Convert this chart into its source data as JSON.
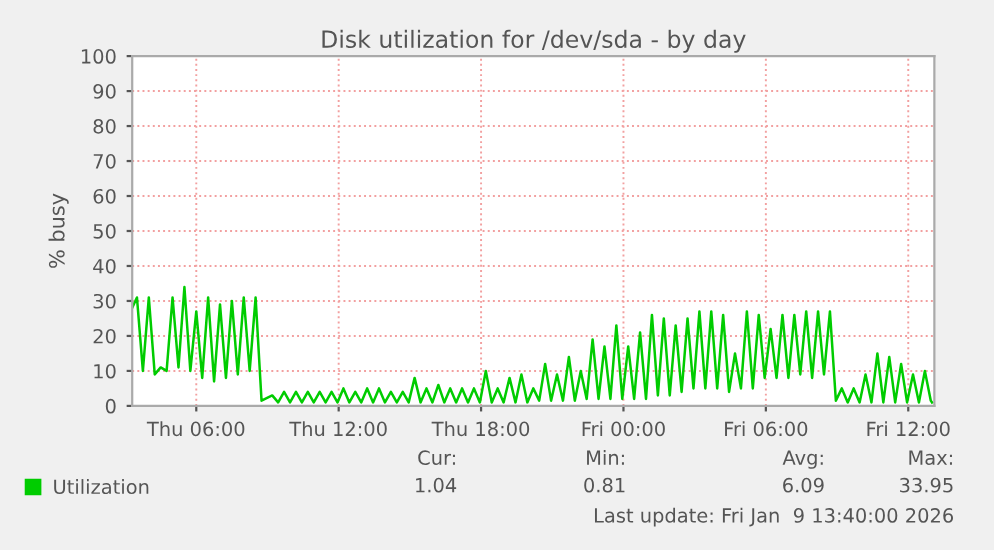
{
  "chart_data": {
    "type": "line",
    "title": "Disk utilization for /dev/sda - by day",
    "ylabel": "% busy",
    "xlim": [
      "2026-01-08T03:18",
      "2026-01-09T13:06"
    ],
    "ylim": [
      0,
      100
    ],
    "xticks": [
      {
        "value": "2026-01-08T06:00",
        "label": "Thu 06:00"
      },
      {
        "value": "2026-01-08T12:00",
        "label": "Thu 12:00"
      },
      {
        "value": "2026-01-08T18:00",
        "label": "Thu 18:00"
      },
      {
        "value": "2026-01-09T00:00",
        "label": "Fri 00:00"
      },
      {
        "value": "2026-01-09T06:00",
        "label": "Fri 06:00"
      },
      {
        "value": "2026-01-09T12:00",
        "label": "Fri 12:00"
      }
    ],
    "yticks": [
      0,
      10,
      20,
      30,
      40,
      50,
      60,
      70,
      80,
      90,
      100
    ],
    "grid": true,
    "legend": "bottom left",
    "marker": "none",
    "line_style": "solid",
    "annotations": [
      "Cur:",
      "Min:",
      "Avg:",
      "Max:",
      "1.04",
      "0.81",
      "6.09",
      "33.95",
      "Last update: Fri Jan  9 13:40:00 2026"
    ],
    "series": [
      {
        "name": "Utilization",
        "color": "#00cc00",
        "x": [
          "2026-01-08T03:18",
          "2026-01-08T03:30",
          "2026-01-08T03:45",
          "2026-01-08T04:00",
          "2026-01-08T04:15",
          "2026-01-08T04:30",
          "2026-01-08T04:45",
          "2026-01-08T05:00",
          "2026-01-08T05:15",
          "2026-01-08T05:30",
          "2026-01-08T05:45",
          "2026-01-08T06:00",
          "2026-01-08T06:15",
          "2026-01-08T06:30",
          "2026-01-08T06:45",
          "2026-01-08T07:00",
          "2026-01-08T07:15",
          "2026-01-08T07:30",
          "2026-01-08T07:45",
          "2026-01-08T08:00",
          "2026-01-08T08:15",
          "2026-01-08T08:30",
          "2026-01-08T08:45",
          "2026-01-08T09:12",
          "2026-01-08T09:27",
          "2026-01-08T09:42",
          "2026-01-08T09:57",
          "2026-01-08T10:12",
          "2026-01-08T10:27",
          "2026-01-08T10:42",
          "2026-01-08T10:57",
          "2026-01-08T11:12",
          "2026-01-08T11:27",
          "2026-01-08T11:42",
          "2026-01-08T11:57",
          "2026-01-08T12:12",
          "2026-01-08T12:27",
          "2026-01-08T12:42",
          "2026-01-08T12:57",
          "2026-01-08T13:12",
          "2026-01-08T13:27",
          "2026-01-08T13:42",
          "2026-01-08T13:57",
          "2026-01-08T14:12",
          "2026-01-08T14:27",
          "2026-01-08T14:42",
          "2026-01-08T14:57",
          "2026-01-08T15:12",
          "2026-01-08T15:27",
          "2026-01-08T15:42",
          "2026-01-08T15:57",
          "2026-01-08T16:12",
          "2026-01-08T16:27",
          "2026-01-08T16:42",
          "2026-01-08T16:57",
          "2026-01-08T17:12",
          "2026-01-08T17:27",
          "2026-01-08T17:42",
          "2026-01-08T17:57",
          "2026-01-08T18:12",
          "2026-01-08T18:27",
          "2026-01-08T18:42",
          "2026-01-08T18:57",
          "2026-01-08T19:12",
          "2026-01-08T19:27",
          "2026-01-08T19:42",
          "2026-01-08T19:57",
          "2026-01-08T20:12",
          "2026-01-08T20:27",
          "2026-01-08T20:42",
          "2026-01-08T20:57",
          "2026-01-08T21:12",
          "2026-01-08T21:27",
          "2026-01-08T21:42",
          "2026-01-08T21:57",
          "2026-01-08T22:12",
          "2026-01-08T22:27",
          "2026-01-08T22:42",
          "2026-01-08T22:57",
          "2026-01-08T23:12",
          "2026-01-08T23:27",
          "2026-01-08T23:42",
          "2026-01-08T23:57",
          "2026-01-09T00:12",
          "2026-01-09T00:27",
          "2026-01-09T00:42",
          "2026-01-09T00:57",
          "2026-01-09T01:12",
          "2026-01-09T01:27",
          "2026-01-09T01:42",
          "2026-01-09T01:57",
          "2026-01-09T02:12",
          "2026-01-09T02:27",
          "2026-01-09T02:42",
          "2026-01-09T02:57",
          "2026-01-09T03:12",
          "2026-01-09T03:27",
          "2026-01-09T03:42",
          "2026-01-09T03:57",
          "2026-01-09T04:12",
          "2026-01-09T04:27",
          "2026-01-09T04:42",
          "2026-01-09T04:57",
          "2026-01-09T05:12",
          "2026-01-09T05:27",
          "2026-01-09T05:42",
          "2026-01-09T05:57",
          "2026-01-09T06:12",
          "2026-01-09T06:27",
          "2026-01-09T06:42",
          "2026-01-09T06:57",
          "2026-01-09T07:12",
          "2026-01-09T07:27",
          "2026-01-09T07:42",
          "2026-01-09T07:57",
          "2026-01-09T08:12",
          "2026-01-09T08:27",
          "2026-01-09T08:42",
          "2026-01-09T08:57",
          "2026-01-09T09:12",
          "2026-01-09T09:27",
          "2026-01-09T09:42",
          "2026-01-09T09:57",
          "2026-01-09T10:12",
          "2026-01-09T10:27",
          "2026-01-09T10:42",
          "2026-01-09T10:57",
          "2026-01-09T11:12",
          "2026-01-09T11:27",
          "2026-01-09T11:42",
          "2026-01-09T11:57",
          "2026-01-09T12:12",
          "2026-01-09T12:27",
          "2026-01-09T12:42",
          "2026-01-09T12:57",
          "2026-01-09T13:00"
        ],
        "values": [
          28,
          31,
          10,
          31,
          9,
          11,
          10,
          31,
          11,
          34,
          10,
          27,
          8,
          31,
          7,
          29,
          8,
          30,
          9,
          31,
          10,
          31,
          1.5,
          3,
          1,
          4,
          1,
          4,
          1,
          4,
          1,
          4,
          1,
          4,
          1,
          5,
          1,
          4,
          1,
          5,
          1,
          5,
          1,
          4,
          1,
          4,
          1,
          8,
          1,
          5,
          1,
          6,
          1,
          5,
          1,
          5,
          1,
          5,
          1,
          10,
          1,
          5,
          1,
          8,
          1,
          9,
          1,
          5,
          1.5,
          12,
          1.5,
          9,
          1.5,
          14,
          1.5,
          10,
          2,
          19,
          2,
          17,
          2,
          23,
          2,
          17,
          2,
          21,
          2,
          26,
          3,
          25,
          3,
          23,
          4,
          25,
          5,
          27,
          5,
          27,
          5,
          26,
          4,
          15,
          5,
          27,
          5,
          26,
          8,
          22,
          8,
          26,
          8,
          26,
          9,
          27,
          8,
          27,
          9,
          27,
          1.5,
          5,
          1,
          5,
          1,
          9,
          1,
          15,
          1,
          14,
          1,
          12,
          1,
          9,
          1,
          10,
          1.5,
          1
        ]
      }
    ]
  }
}
